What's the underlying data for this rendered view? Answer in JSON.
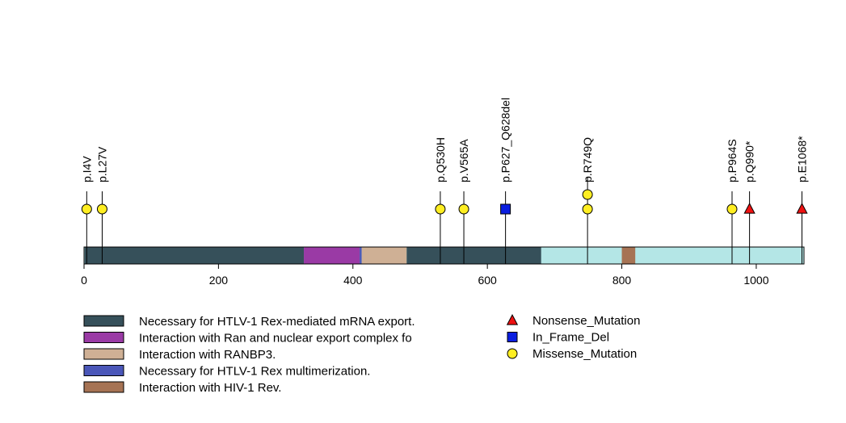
{
  "chart_data": {
    "type": "lollipop",
    "protein_length": 1071,
    "x_axis": {
      "range": [
        0,
        1071
      ],
      "ticks": [
        0,
        200,
        400,
        600,
        800,
        1000
      ]
    },
    "domains": [
      {
        "name": "Necessary for HTLV-1 Rex-mediated mRNA export.",
        "start": 1,
        "end": 327,
        "color": "#36505a"
      },
      {
        "name": "Interaction with Ran and nuclear export complex fo",
        "start": 327,
        "end": 410,
        "color": "#9a3aa5"
      },
      {
        "name": "Necessary for HTLV-1 Rex multimerization.",
        "start": 410,
        "end": 413,
        "color": "#4a56b8"
      },
      {
        "name": "Interaction with RANBP3.",
        "start": 413,
        "end": 480,
        "color": "#cfb095"
      },
      {
        "name": "Necessary for HTLV-1 Rex-mediated mRNA export.",
        "start": 480,
        "end": 680,
        "color": "#36505a"
      },
      {
        "name": "Interaction with HIV-1 Rev.",
        "start": 800,
        "end": 820,
        "color": "#a67354"
      }
    ],
    "mutations": [
      {
        "label": "p.I4V",
        "position": 4,
        "type": "Missense_Mutation",
        "count": 1
      },
      {
        "label": "p.L27V",
        "position": 27,
        "type": "Missense_Mutation",
        "count": 1
      },
      {
        "label": "p.Q530H",
        "position": 530,
        "type": "Missense_Mutation",
        "count": 1
      },
      {
        "label": "p.V565A",
        "position": 565,
        "type": "Missense_Mutation",
        "count": 1
      },
      {
        "label": "p.P627_Q628del",
        "position": 627,
        "type": "In_Frame_Del",
        "count": 1
      },
      {
        "label": "p.R749Q",
        "position": 749,
        "type": "Missense_Mutation",
        "count": 2
      },
      {
        "label": "p.P964S",
        "position": 964,
        "type": "Missense_Mutation",
        "count": 1
      },
      {
        "label": "p.Q990*",
        "position": 990,
        "type": "Nonsense_Mutation",
        "count": 1
      },
      {
        "label": "p.E1068*",
        "position": 1068,
        "type": "Nonsense_Mutation",
        "count": 1
      }
    ],
    "legend_domains": [
      {
        "name": "Necessary for HTLV-1 Rex-mediated mRNA export.",
        "color": "#36505a"
      },
      {
        "name": "Interaction with Ran and nuclear export complex fo",
        "color": "#9a3aa5"
      },
      {
        "name": "Interaction with RANBP3.",
        "color": "#cfb095"
      },
      {
        "name": "Necessary for HTLV-1 Rex multimerization.",
        "color": "#4a56b8"
      },
      {
        "name": "Interaction with HIV-1 Rev.",
        "color": "#a67354"
      }
    ],
    "legend_mutations": [
      {
        "name": "Nonsense_Mutation",
        "shape": "triangle",
        "color": "#ee1111"
      },
      {
        "name": "In_Frame_Del",
        "shape": "square",
        "color": "#0a1ee0"
      },
      {
        "name": "Missense_Mutation",
        "shape": "circle",
        "color": "#ffee22"
      }
    ],
    "colors": {
      "backbone": "#b4e6e6",
      "stroke": "#000000"
    }
  }
}
